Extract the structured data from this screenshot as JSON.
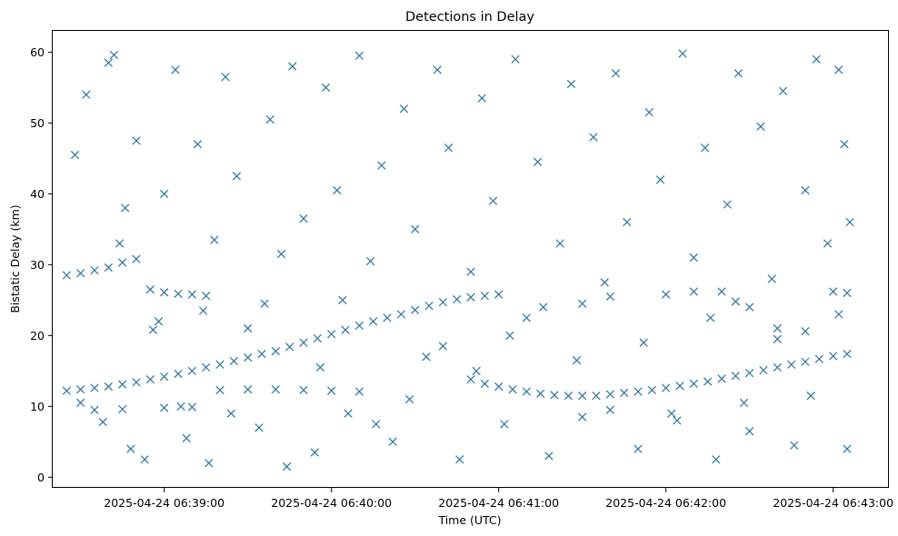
{
  "chart_data": {
    "type": "scatter",
    "title": "Detections in Delay",
    "xlabel": "Time (UTC)",
    "ylabel": "Bistatic Delay (km)",
    "x_is_time": true,
    "xlim": [
      "2025-04-24 06:38:20",
      "2025-04-24 06:43:20"
    ],
    "ylim": [
      -1.5,
      63
    ],
    "x_ticks": [
      "2025-04-24 06:39:00",
      "2025-04-24 06:40:00",
      "2025-04-24 06:41:00",
      "2025-04-24 06:42:00",
      "2025-04-24 06:43:00"
    ],
    "y_ticks": [
      0,
      10,
      20,
      30,
      40,
      50,
      60
    ],
    "marker": "x",
    "color": "#1f77b4",
    "grid": false,
    "legend": "none",
    "series": [
      {
        "points": [
          [
            "2025-04-24 06:38:25",
            12.2
          ],
          [
            "2025-04-24 06:38:30",
            12.4
          ],
          [
            "2025-04-24 06:38:35",
            12.6
          ],
          [
            "2025-04-24 06:38:40",
            12.8
          ],
          [
            "2025-04-24 06:38:45",
            13.1
          ],
          [
            "2025-04-24 06:38:50",
            13.4
          ],
          [
            "2025-04-24 06:38:55",
            13.8
          ],
          [
            "2025-04-24 06:39:00",
            14.2
          ],
          [
            "2025-04-24 06:39:05",
            14.6
          ],
          [
            "2025-04-24 06:39:10",
            15.0
          ],
          [
            "2025-04-24 06:39:15",
            15.5
          ],
          [
            "2025-04-24 06:39:20",
            15.9
          ],
          [
            "2025-04-24 06:39:25",
            16.4
          ],
          [
            "2025-04-24 06:39:30",
            16.9
          ],
          [
            "2025-04-24 06:39:35",
            17.4
          ],
          [
            "2025-04-24 06:39:40",
            17.8
          ],
          [
            "2025-04-24 06:39:45",
            18.4
          ],
          [
            "2025-04-24 06:39:50",
            19.0
          ],
          [
            "2025-04-24 06:39:55",
            19.6
          ],
          [
            "2025-04-24 06:40:00",
            20.2
          ],
          [
            "2025-04-24 06:40:05",
            20.8
          ],
          [
            "2025-04-24 06:40:10",
            21.4
          ],
          [
            "2025-04-24 06:40:15",
            22.0
          ],
          [
            "2025-04-24 06:40:20",
            22.5
          ],
          [
            "2025-04-24 06:40:25",
            23.0
          ],
          [
            "2025-04-24 06:40:30",
            23.6
          ],
          [
            "2025-04-24 06:40:35",
            24.2
          ],
          [
            "2025-04-24 06:40:40",
            24.7
          ],
          [
            "2025-04-24 06:40:45",
            25.1
          ],
          [
            "2025-04-24 06:40:50",
            25.4
          ],
          [
            "2025-04-24 06:40:55",
            25.6
          ],
          [
            "2025-04-24 06:41:00",
            25.8
          ],
          [
            "2025-04-24 06:40:50",
            13.8
          ],
          [
            "2025-04-24 06:40:55",
            13.2
          ],
          [
            "2025-04-24 06:41:00",
            12.8
          ],
          [
            "2025-04-24 06:41:05",
            12.4
          ],
          [
            "2025-04-24 06:41:10",
            12.1
          ],
          [
            "2025-04-24 06:41:15",
            11.8
          ],
          [
            "2025-04-24 06:41:20",
            11.6
          ],
          [
            "2025-04-24 06:41:25",
            11.5
          ],
          [
            "2025-04-24 06:41:30",
            11.5
          ],
          [
            "2025-04-24 06:41:35",
            11.5
          ],
          [
            "2025-04-24 06:41:40",
            11.7
          ],
          [
            "2025-04-24 06:41:45",
            11.9
          ],
          [
            "2025-04-24 06:41:50",
            12.1
          ],
          [
            "2025-04-24 06:41:55",
            12.3
          ],
          [
            "2025-04-24 06:42:00",
            12.6
          ],
          [
            "2025-04-24 06:42:05",
            12.9
          ],
          [
            "2025-04-24 06:42:10",
            13.2
          ],
          [
            "2025-04-24 06:42:15",
            13.5
          ],
          [
            "2025-04-24 06:42:20",
            13.9
          ],
          [
            "2025-04-24 06:42:25",
            14.3
          ],
          [
            "2025-04-24 06:42:30",
            14.7
          ],
          [
            "2025-04-24 06:42:35",
            15.1
          ],
          [
            "2025-04-24 06:42:40",
            15.5
          ],
          [
            "2025-04-24 06:42:45",
            15.9
          ],
          [
            "2025-04-24 06:42:50",
            16.3
          ],
          [
            "2025-04-24 06:42:55",
            16.7
          ],
          [
            "2025-04-24 06:43:00",
            17.1
          ],
          [
            "2025-04-24 06:43:05",
            17.4
          ],
          [
            "2025-04-24 06:38:25",
            28.5
          ],
          [
            "2025-04-24 06:38:30",
            28.8
          ],
          [
            "2025-04-24 06:38:35",
            29.2
          ],
          [
            "2025-04-24 06:38:40",
            29.6
          ],
          [
            "2025-04-24 06:38:45",
            30.3
          ],
          [
            "2025-04-24 06:38:50",
            30.8
          ],
          [
            "2025-04-24 06:38:55",
            26.5
          ],
          [
            "2025-04-24 06:39:00",
            26.1
          ],
          [
            "2025-04-24 06:39:05",
            25.9
          ],
          [
            "2025-04-24 06:39:10",
            25.8
          ],
          [
            "2025-04-24 06:39:15",
            25.6
          ],
          [
            "2025-04-24 06:39:20",
            12.3
          ],
          [
            "2025-04-24 06:39:30",
            12.4
          ],
          [
            "2025-04-24 06:39:40",
            12.4
          ],
          [
            "2025-04-24 06:39:50",
            12.3
          ],
          [
            "2025-04-24 06:40:00",
            12.2
          ],
          [
            "2025-04-24 06:40:10",
            12.1
          ],
          [
            "2025-04-24 06:38:35",
            9.5
          ],
          [
            "2025-04-24 06:38:45",
            9.6
          ],
          [
            "2025-04-24 06:39:00",
            9.8
          ],
          [
            "2025-04-24 06:39:10",
            9.9
          ],
          [
            "2025-04-24 06:41:30",
            24.5
          ],
          [
            "2025-04-24 06:41:40",
            25.5
          ],
          [
            "2025-04-24 06:42:00",
            25.8
          ],
          [
            "2025-04-24 06:42:10",
            26.2
          ],
          [
            "2025-04-24 06:42:20",
            26.2
          ],
          [
            "2025-04-24 06:42:25",
            24.8
          ],
          [
            "2025-04-24 06:42:30",
            24.0
          ],
          [
            "2025-04-24 06:42:40",
            21.0
          ],
          [
            "2025-04-24 06:42:50",
            20.6
          ],
          [
            "2025-04-24 06:43:00",
            26.2
          ],
          [
            "2025-04-24 06:43:05",
            26.0
          ],
          [
            "2025-04-24 06:38:28",
            45.5
          ],
          [
            "2025-04-24 06:38:32",
            54.0
          ],
          [
            "2025-04-24 06:38:40",
            58.5
          ],
          [
            "2025-04-24 06:38:42",
            59.6
          ],
          [
            "2025-04-24 06:38:44",
            33.0
          ],
          [
            "2025-04-24 06:38:46",
            38.0
          ],
          [
            "2025-04-24 06:38:50",
            47.5
          ],
          [
            "2025-04-24 06:38:53",
            2.5
          ],
          [
            "2025-04-24 06:38:56",
            20.8
          ],
          [
            "2025-04-24 06:39:00",
            40.0
          ],
          [
            "2025-04-24 06:39:04",
            57.5
          ],
          [
            "2025-04-24 06:39:08",
            5.5
          ],
          [
            "2025-04-24 06:39:12",
            47.0
          ],
          [
            "2025-04-24 06:39:16",
            2.0
          ],
          [
            "2025-04-24 06:39:18",
            33.5
          ],
          [
            "2025-04-24 06:39:22",
            56.5
          ],
          [
            "2025-04-24 06:39:26",
            42.5
          ],
          [
            "2025-04-24 06:39:30",
            21.0
          ],
          [
            "2025-04-24 06:39:34",
            7.0
          ],
          [
            "2025-04-24 06:39:38",
            50.5
          ],
          [
            "2025-04-24 06:39:42",
            31.5
          ],
          [
            "2025-04-24 06:39:46",
            58.0
          ],
          [
            "2025-04-24 06:39:50",
            36.5
          ],
          [
            "2025-04-24 06:39:54",
            3.5
          ],
          [
            "2025-04-24 06:39:58",
            55.0
          ],
          [
            "2025-04-24 06:40:02",
            40.5
          ],
          [
            "2025-04-24 06:40:06",
            9.0
          ],
          [
            "2025-04-24 06:40:10",
            59.5
          ],
          [
            "2025-04-24 06:40:14",
            30.5
          ],
          [
            "2025-04-24 06:40:18",
            44.0
          ],
          [
            "2025-04-24 06:40:22",
            5.0
          ],
          [
            "2025-04-24 06:40:26",
            52.0
          ],
          [
            "2025-04-24 06:40:30",
            35.0
          ],
          [
            "2025-04-24 06:40:34",
            17.0
          ],
          [
            "2025-04-24 06:40:38",
            57.5
          ],
          [
            "2025-04-24 06:40:42",
            46.5
          ],
          [
            "2025-04-24 06:40:46",
            2.5
          ],
          [
            "2025-04-24 06:40:50",
            29.0
          ],
          [
            "2025-04-24 06:40:54",
            53.5
          ],
          [
            "2025-04-24 06:40:58",
            39.0
          ],
          [
            "2025-04-24 06:41:02",
            7.5
          ],
          [
            "2025-04-24 06:41:06",
            59.0
          ],
          [
            "2025-04-24 06:41:10",
            22.5
          ],
          [
            "2025-04-24 06:41:14",
            44.5
          ],
          [
            "2025-04-24 06:41:18",
            3.0
          ],
          [
            "2025-04-24 06:41:22",
            33.0
          ],
          [
            "2025-04-24 06:41:26",
            55.5
          ],
          [
            "2025-04-24 06:41:30",
            8.5
          ],
          [
            "2025-04-24 06:41:34",
            48.0
          ],
          [
            "2025-04-24 06:41:38",
            27.5
          ],
          [
            "2025-04-24 06:41:42",
            57.0
          ],
          [
            "2025-04-24 06:41:46",
            36.0
          ],
          [
            "2025-04-24 06:41:50",
            4.0
          ],
          [
            "2025-04-24 06:41:54",
            51.5
          ],
          [
            "2025-04-24 06:41:58",
            42.0
          ],
          [
            "2025-04-24 06:42:02",
            9.0
          ],
          [
            "2025-04-24 06:42:06",
            59.8
          ],
          [
            "2025-04-24 06:42:10",
            31.0
          ],
          [
            "2025-04-24 06:42:14",
            46.5
          ],
          [
            "2025-04-24 06:42:18",
            2.5
          ],
          [
            "2025-04-24 06:42:22",
            38.5
          ],
          [
            "2025-04-24 06:42:26",
            57.0
          ],
          [
            "2025-04-24 06:42:30",
            6.5
          ],
          [
            "2025-04-24 06:42:34",
            49.5
          ],
          [
            "2025-04-24 06:42:38",
            28.0
          ],
          [
            "2025-04-24 06:42:42",
            54.5
          ],
          [
            "2025-04-24 06:42:46",
            4.5
          ],
          [
            "2025-04-24 06:42:50",
            40.5
          ],
          [
            "2025-04-24 06:42:54",
            59.0
          ],
          [
            "2025-04-24 06:42:58",
            33.0
          ],
          [
            "2025-04-24 06:43:02",
            57.5
          ],
          [
            "2025-04-24 06:43:04",
            47.0
          ],
          [
            "2025-04-24 06:43:05",
            4.0
          ],
          [
            "2025-04-24 06:43:06",
            36.0
          ],
          [
            "2025-04-24 06:38:30",
            10.5
          ],
          [
            "2025-04-24 06:38:38",
            7.8
          ],
          [
            "2025-04-24 06:38:48",
            4.0
          ],
          [
            "2025-04-24 06:38:58",
            22.0
          ],
          [
            "2025-04-24 06:39:06",
            10.0
          ],
          [
            "2025-04-24 06:39:14",
            23.5
          ],
          [
            "2025-04-24 06:39:24",
            9.0
          ],
          [
            "2025-04-24 06:39:36",
            24.5
          ],
          [
            "2025-04-24 06:39:44",
            1.5
          ],
          [
            "2025-04-24 06:39:56",
            15.5
          ],
          [
            "2025-04-24 06:40:04",
            25.0
          ],
          [
            "2025-04-24 06:40:16",
            7.5
          ],
          [
            "2025-04-24 06:40:28",
            11.0
          ],
          [
            "2025-04-24 06:40:40",
            18.5
          ],
          [
            "2025-04-24 06:40:52",
            15.0
          ],
          [
            "2025-04-24 06:41:04",
            20.0
          ],
          [
            "2025-04-24 06:41:16",
            24.0
          ],
          [
            "2025-04-24 06:41:28",
            16.5
          ],
          [
            "2025-04-24 06:41:40",
            9.5
          ],
          [
            "2025-04-24 06:41:52",
            19.0
          ],
          [
            "2025-04-24 06:42:04",
            8.0
          ],
          [
            "2025-04-24 06:42:16",
            22.5
          ],
          [
            "2025-04-24 06:42:28",
            10.5
          ],
          [
            "2025-04-24 06:42:40",
            19.5
          ],
          [
            "2025-04-24 06:42:52",
            11.5
          ],
          [
            "2025-04-24 06:43:02",
            23.0
          ]
        ]
      }
    ]
  }
}
